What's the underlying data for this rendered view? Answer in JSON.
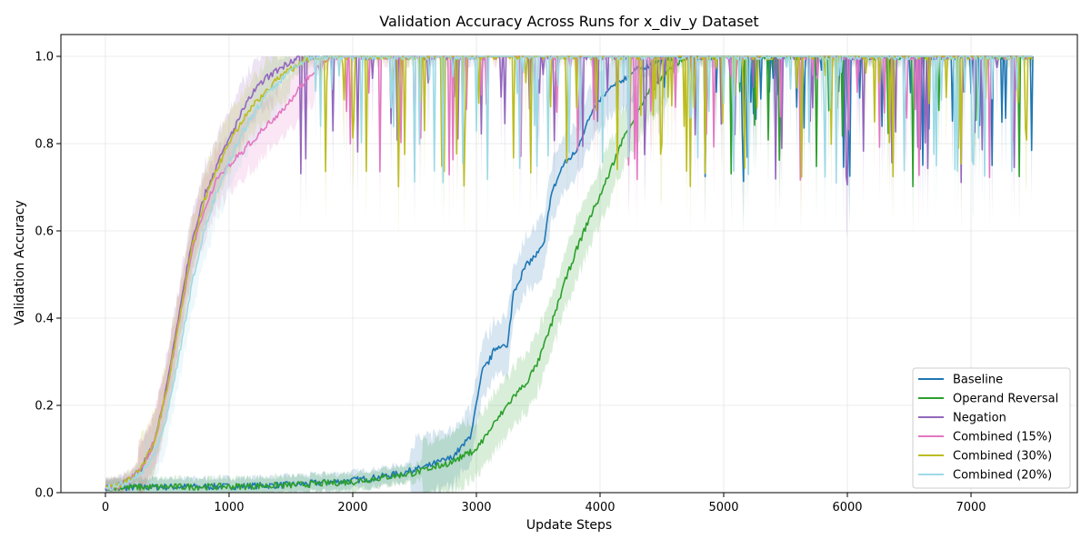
{
  "chart_data": {
    "type": "line",
    "title": "Validation Accuracy Across Runs for x_div_y Dataset",
    "xlabel": "Update Steps",
    "ylabel": "Validation Accuracy",
    "xlim": [
      -360,
      7860
    ],
    "ylim": [
      0,
      1.05
    ],
    "xticks": [
      0,
      1000,
      2000,
      3000,
      4000,
      5000,
      6000,
      7000
    ],
    "yticks": [
      0.0,
      0.2,
      0.4,
      0.6,
      0.8,
      1.0
    ],
    "xtick_labels": [
      "0",
      "1000",
      "2000",
      "3000",
      "4000",
      "5000",
      "6000",
      "7000"
    ],
    "ytick_labels": [
      "0.0",
      "0.2",
      "0.4",
      "0.6",
      "0.8",
      "1.0"
    ],
    "grid": true,
    "legend_position": "lower-right",
    "series": [
      {
        "name": "Baseline",
        "color": "#1f77b4",
        "x": [
          0,
          200,
          500,
          1000,
          1500,
          2000,
          2200,
          2400,
          2600,
          2800,
          2900,
          2950,
          3000,
          3050,
          3100,
          3150,
          3200,
          3250,
          3300,
          3400,
          3500,
          3550,
          3600,
          3700,
          3800,
          3900,
          4000,
          4100,
          4200,
          4300,
          4400,
          4500,
          4600,
          4700,
          7500
        ],
        "y": [
          0.01,
          0.012,
          0.013,
          0.014,
          0.018,
          0.028,
          0.035,
          0.045,
          0.06,
          0.08,
          0.11,
          0.13,
          0.2,
          0.28,
          0.3,
          0.33,
          0.34,
          0.33,
          0.46,
          0.52,
          0.55,
          0.57,
          0.68,
          0.75,
          0.78,
          0.85,
          0.9,
          0.93,
          0.95,
          0.97,
          0.98,
          0.99,
          1.0,
          1.0,
          1.0
        ]
      },
      {
        "name": "Operand Reversal",
        "color": "#2ca02c",
        "x": [
          0,
          200,
          500,
          1000,
          1500,
          2000,
          2500,
          2800,
          3000,
          3100,
          3200,
          3300,
          3400,
          3500,
          3600,
          3700,
          3800,
          3900,
          4000,
          4100,
          4200,
          4300,
          4400,
          4500,
          4600,
          4700,
          7500
        ],
        "y": [
          0.01,
          0.012,
          0.013,
          0.014,
          0.017,
          0.025,
          0.045,
          0.07,
          0.1,
          0.14,
          0.18,
          0.22,
          0.25,
          0.3,
          0.38,
          0.47,
          0.55,
          0.62,
          0.68,
          0.75,
          0.82,
          0.87,
          0.92,
          0.95,
          0.98,
          1.0,
          1.0
        ]
      },
      {
        "name": "Negation",
        "color": "#9467bd",
        "x": [
          0,
          100,
          200,
          300,
          400,
          500,
          600,
          700,
          800,
          900,
          1000,
          1100,
          1200,
          1300,
          1400,
          1500,
          1600,
          1700,
          1800,
          7500
        ],
        "y": [
          0.01,
          0.015,
          0.03,
          0.06,
          0.12,
          0.25,
          0.42,
          0.58,
          0.68,
          0.75,
          0.81,
          0.87,
          0.92,
          0.95,
          0.97,
          0.99,
          1.0,
          1.0,
          1.0,
          1.0
        ]
      },
      {
        "name": "Combined (15%)",
        "color": "#e377c2",
        "x": [
          0,
          100,
          200,
          300,
          400,
          500,
          600,
          700,
          800,
          900,
          1000,
          1100,
          1200,
          1300,
          1400,
          1500,
          1600,
          1700,
          1800,
          1900,
          2000,
          7500
        ],
        "y": [
          0.01,
          0.015,
          0.03,
          0.06,
          0.12,
          0.24,
          0.4,
          0.55,
          0.65,
          0.72,
          0.75,
          0.78,
          0.81,
          0.84,
          0.87,
          0.9,
          0.94,
          0.97,
          0.99,
          1.0,
          1.0,
          1.0
        ]
      },
      {
        "name": "Combined (30%)",
        "color": "#bcbd22",
        "x": [
          0,
          100,
          200,
          300,
          400,
          500,
          600,
          700,
          800,
          900,
          1000,
          1100,
          1200,
          1300,
          1400,
          1500,
          1600,
          1700,
          1800,
          7500
        ],
        "y": [
          0.01,
          0.015,
          0.03,
          0.06,
          0.12,
          0.24,
          0.4,
          0.56,
          0.67,
          0.74,
          0.8,
          0.85,
          0.89,
          0.92,
          0.95,
          0.97,
          0.99,
          1.0,
          1.0,
          1.0
        ]
      },
      {
        "name": "Combined (20%)",
        "color": "#9edae5",
        "x": [
          0,
          100,
          200,
          300,
          400,
          500,
          600,
          700,
          800,
          900,
          1000,
          1100,
          1200,
          1300,
          1400,
          1500,
          1600,
          1700,
          1800,
          1900,
          7500
        ],
        "y": [
          0.01,
          0.015,
          0.025,
          0.05,
          0.09,
          0.18,
          0.32,
          0.48,
          0.6,
          0.69,
          0.76,
          0.82,
          0.87,
          0.91,
          0.94,
          0.97,
          0.99,
          1.0,
          1.0,
          1.0,
          1.0
        ]
      }
    ]
  }
}
